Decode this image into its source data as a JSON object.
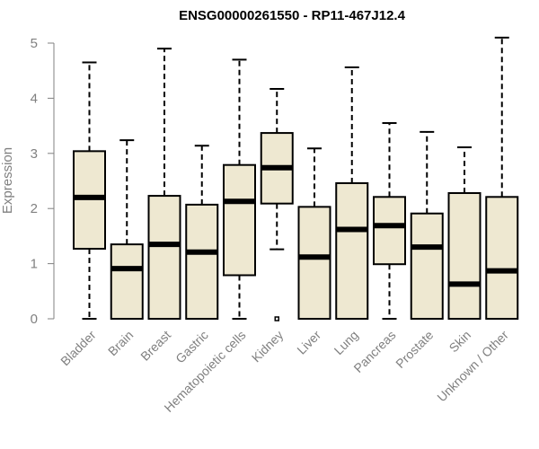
{
  "chart_data": {
    "type": "box",
    "title": "ENSG00000261550 - RP11-467J12.4",
    "ylabel": "Expression",
    "xlabel": "",
    "ylim": [
      0,
      5
    ],
    "yticks": [
      0,
      1,
      2,
      3,
      4,
      5
    ],
    "grid": false,
    "box_fill": "#EEE8D1",
    "box_stroke": "#000000",
    "axis_color": "#808080",
    "categories": [
      "Bladder",
      "Brain",
      "Breast",
      "Gastric",
      "Hematopoietic cells",
      "Kidney",
      "Liver",
      "Lung",
      "Pancreas",
      "Prostate",
      "Skin",
      "Unknown / Other"
    ],
    "boxes": [
      {
        "label": "Bladder",
        "min": 0.0,
        "q1": 1.27,
        "median": 2.2,
        "q3": 3.04,
        "max": 4.65,
        "outliers": []
      },
      {
        "label": "Brain",
        "min": 0.0,
        "q1": 0.0,
        "median": 0.91,
        "q3": 1.35,
        "max": 3.24,
        "outliers": []
      },
      {
        "label": "Breast",
        "min": 0.0,
        "q1": 0.0,
        "median": 1.35,
        "q3": 2.23,
        "max": 4.9,
        "outliers": []
      },
      {
        "label": "Gastric",
        "min": 0.0,
        "q1": 0.0,
        "median": 1.21,
        "q3": 2.07,
        "max": 3.14,
        "outliers": []
      },
      {
        "label": "Hematopoietic cells",
        "min": 0.0,
        "q1": 0.79,
        "median": 2.13,
        "q3": 2.79,
        "max": 4.7,
        "outliers": []
      },
      {
        "label": "Kidney",
        "min": 1.26,
        "q1": 2.09,
        "median": 2.74,
        "q3": 3.37,
        "max": 4.17,
        "outliers": [
          0.0
        ]
      },
      {
        "label": "Liver",
        "min": 0.0,
        "q1": 0.0,
        "median": 1.12,
        "q3": 2.03,
        "max": 3.09,
        "outliers": []
      },
      {
        "label": "Lung",
        "min": 0.0,
        "q1": 0.0,
        "median": 1.62,
        "q3": 2.46,
        "max": 4.56,
        "outliers": []
      },
      {
        "label": "Pancreas",
        "min": 0.0,
        "q1": 0.99,
        "median": 1.69,
        "q3": 2.21,
        "max": 3.55,
        "outliers": []
      },
      {
        "label": "Prostate",
        "min": 0.0,
        "q1": 0.0,
        "median": 1.3,
        "q3": 1.91,
        "max": 3.39,
        "outliers": []
      },
      {
        "label": "Skin",
        "min": 0.0,
        "q1": 0.0,
        "median": 0.63,
        "q3": 2.28,
        "max": 3.11,
        "outliers": []
      },
      {
        "label": "Unknown / Other",
        "min": 0.0,
        "q1": 0.0,
        "median": 0.87,
        "q3": 2.21,
        "max": 5.1,
        "outliers": []
      }
    ]
  }
}
